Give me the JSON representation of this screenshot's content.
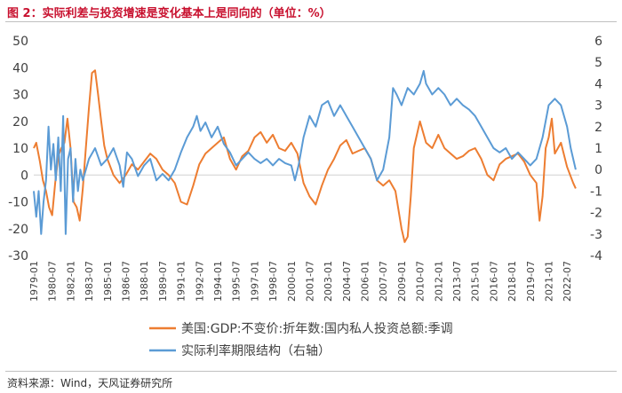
{
  "header": {
    "title": "图 2：实际利差与投资增速是变化基本上是同向的（单位：%）"
  },
  "footer": {
    "source": "资料来源：Wind，天风证券研究所"
  },
  "colors": {
    "series1": "#ed7d31",
    "series2": "#5b9bd5",
    "title": "#c8102e"
  },
  "chart_data": {
    "type": "line",
    "x_ticks": [
      "1979-01",
      "1980-07",
      "1982-01",
      "1983-07",
      "1985-01",
      "1986-07",
      "1988-01",
      "1989-07",
      "1991-01",
      "1992-07",
      "1994-01",
      "1995-07",
      "1997-01",
      "1998-07",
      "2000-01",
      "2001-07",
      "2003-01",
      "2004-07",
      "2006-01",
      "2007-07",
      "2009-01",
      "2010-07",
      "2012-01",
      "2013-07",
      "2015-01",
      "2016-07",
      "2018-01",
      "2019-07",
      "2021-01",
      "2022-07"
    ],
    "x_range": [
      1979.0,
      2023.5
    ],
    "y_left": {
      "range": [
        -30,
        50
      ],
      "ticks": [
        -30,
        -20,
        -10,
        0,
        10,
        20,
        30,
        40,
        50
      ]
    },
    "y_right": {
      "range": [
        -4,
        6
      ],
      "ticks": [
        -4,
        -3,
        -2,
        -1,
        0,
        1,
        2,
        3,
        4,
        5,
        6
      ]
    },
    "series": [
      {
        "name": "美国:GDP:不变价:折年数:国内私人投资总额:季调",
        "axis": "left",
        "points": [
          [
            1979.0,
            10
          ],
          [
            1979.2,
            12
          ],
          [
            1979.5,
            5
          ],
          [
            1979.75,
            -2
          ],
          [
            1980.0,
            -6
          ],
          [
            1980.25,
            -12
          ],
          [
            1980.5,
            -15
          ],
          [
            1980.75,
            -3
          ],
          [
            1981.0,
            7
          ],
          [
            1981.25,
            10
          ],
          [
            1981.5,
            12
          ],
          [
            1981.75,
            21
          ],
          [
            1982.0,
            10
          ],
          [
            1982.25,
            -10
          ],
          [
            1982.5,
            -12
          ],
          [
            1982.75,
            -17
          ],
          [
            1983.0,
            -5
          ],
          [
            1983.25,
            10
          ],
          [
            1983.5,
            25
          ],
          [
            1983.75,
            38
          ],
          [
            1984.0,
            39
          ],
          [
            1984.25,
            30
          ],
          [
            1984.5,
            20
          ],
          [
            1984.75,
            11
          ],
          [
            1985.0,
            6
          ],
          [
            1985.5,
            0
          ],
          [
            1986.0,
            -3
          ],
          [
            1986.5,
            0
          ],
          [
            1987.0,
            4
          ],
          [
            1987.5,
            2
          ],
          [
            1988.0,
            5
          ],
          [
            1988.5,
            8
          ],
          [
            1989.0,
            6
          ],
          [
            1989.5,
            2
          ],
          [
            1990.0,
            0
          ],
          [
            1990.5,
            -3
          ],
          [
            1991.0,
            -10
          ],
          [
            1991.5,
            -11
          ],
          [
            1992.0,
            -4
          ],
          [
            1992.5,
            4
          ],
          [
            1993.0,
            8
          ],
          [
            1993.5,
            10
          ],
          [
            1994.0,
            12
          ],
          [
            1994.5,
            14
          ],
          [
            1995.0,
            6
          ],
          [
            1995.5,
            2
          ],
          [
            1996.0,
            7
          ],
          [
            1996.5,
            9
          ],
          [
            1997.0,
            14
          ],
          [
            1997.5,
            16
          ],
          [
            1998.0,
            12
          ],
          [
            1998.5,
            15
          ],
          [
            1999.0,
            10
          ],
          [
            1999.5,
            9
          ],
          [
            2000.0,
            12
          ],
          [
            2000.5,
            8
          ],
          [
            2001.0,
            -3
          ],
          [
            2001.5,
            -8
          ],
          [
            2002.0,
            -11
          ],
          [
            2002.5,
            -4
          ],
          [
            2003.0,
            2
          ],
          [
            2003.5,
            6
          ],
          [
            2004.0,
            11
          ],
          [
            2004.5,
            13
          ],
          [
            2005.0,
            8
          ],
          [
            2005.5,
            9
          ],
          [
            2006.0,
            10
          ],
          [
            2006.5,
            6
          ],
          [
            2007.0,
            -2
          ],
          [
            2007.5,
            -4
          ],
          [
            2008.0,
            -2
          ],
          [
            2008.5,
            -6
          ],
          [
            2009.0,
            -20
          ],
          [
            2009.25,
            -25
          ],
          [
            2009.5,
            -23
          ],
          [
            2009.75,
            -8
          ],
          [
            2010.0,
            10
          ],
          [
            2010.5,
            20
          ],
          [
            2011.0,
            12
          ],
          [
            2011.5,
            10
          ],
          [
            2012.0,
            15
          ],
          [
            2012.5,
            10
          ],
          [
            2013.0,
            8
          ],
          [
            2013.5,
            6
          ],
          [
            2014.0,
            7
          ],
          [
            2014.5,
            9
          ],
          [
            2015.0,
            10
          ],
          [
            2015.5,
            6
          ],
          [
            2016.0,
            0
          ],
          [
            2016.5,
            -2
          ],
          [
            2017.0,
            4
          ],
          [
            2017.5,
            6
          ],
          [
            2018.0,
            7
          ],
          [
            2018.5,
            8
          ],
          [
            2019.0,
            5
          ],
          [
            2019.5,
            0
          ],
          [
            2020.0,
            -3
          ],
          [
            2020.25,
            -17
          ],
          [
            2020.5,
            -8
          ],
          [
            2020.75,
            10
          ],
          [
            2021.0,
            14
          ],
          [
            2021.25,
            21
          ],
          [
            2021.5,
            8
          ],
          [
            2021.75,
            10
          ],
          [
            2022.0,
            12
          ],
          [
            2022.5,
            3
          ],
          [
            2023.0,
            -3
          ],
          [
            2023.2,
            -5
          ]
        ]
      },
      {
        "name": "实际利率期限结构（右轴）",
        "axis": "right",
        "points": [
          [
            1979.0,
            -1.0
          ],
          [
            1979.2,
            -2.2
          ],
          [
            1979.4,
            -1.0
          ],
          [
            1979.6,
            -3.0
          ],
          [
            1979.8,
            -1.5
          ],
          [
            1980.0,
            -0.5
          ],
          [
            1980.2,
            2.0
          ],
          [
            1980.4,
            0.0
          ],
          [
            1980.6,
            1.2
          ],
          [
            1980.8,
            -0.5
          ],
          [
            1981.0,
            1.5
          ],
          [
            1981.2,
            -1.0
          ],
          [
            1981.4,
            2.5
          ],
          [
            1981.6,
            -3.0
          ],
          [
            1981.8,
            0.5
          ],
          [
            1982.0,
            1.0
          ],
          [
            1982.2,
            -1.5
          ],
          [
            1982.4,
            0.5
          ],
          [
            1982.6,
            -1.0
          ],
          [
            1982.8,
            0.0
          ],
          [
            1983.0,
            -0.5
          ],
          [
            1983.5,
            0.5
          ],
          [
            1984.0,
            1.0
          ],
          [
            1984.5,
            0.2
          ],
          [
            1985.0,
            0.5
          ],
          [
            1985.5,
            1.0
          ],
          [
            1986.0,
            0.2
          ],
          [
            1986.3,
            -0.8
          ],
          [
            1986.6,
            0.8
          ],
          [
            1987.0,
            0.5
          ],
          [
            1987.5,
            -0.3
          ],
          [
            1988.0,
            0.2
          ],
          [
            1988.5,
            0.5
          ],
          [
            1989.0,
            -0.5
          ],
          [
            1989.5,
            -0.2
          ],
          [
            1990.0,
            -0.5
          ],
          [
            1990.5,
            0.0
          ],
          [
            1991.0,
            0.8
          ],
          [
            1991.5,
            1.5
          ],
          [
            1992.0,
            2.0
          ],
          [
            1992.3,
            2.5
          ],
          [
            1992.6,
            1.8
          ],
          [
            1993.0,
            2.2
          ],
          [
            1993.5,
            1.5
          ],
          [
            1994.0,
            2.0
          ],
          [
            1994.5,
            1.2
          ],
          [
            1995.0,
            0.8
          ],
          [
            1995.5,
            0.2
          ],
          [
            1996.0,
            0.5
          ],
          [
            1996.5,
            0.8
          ],
          [
            1997.0,
            0.5
          ],
          [
            1997.5,
            0.3
          ],
          [
            1998.0,
            0.5
          ],
          [
            1998.5,
            0.2
          ],
          [
            1999.0,
            0.5
          ],
          [
            1999.5,
            0.3
          ],
          [
            2000.0,
            0.2
          ],
          [
            2000.3,
            -0.5
          ],
          [
            2000.6,
            0.2
          ],
          [
            2001.0,
            1.5
          ],
          [
            2001.5,
            2.5
          ],
          [
            2002.0,
            2.0
          ],
          [
            2002.5,
            3.0
          ],
          [
            2003.0,
            3.2
          ],
          [
            2003.5,
            2.5
          ],
          [
            2004.0,
            3.0
          ],
          [
            2004.5,
            2.5
          ],
          [
            2005.0,
            2.0
          ],
          [
            2005.5,
            1.5
          ],
          [
            2006.0,
            1.0
          ],
          [
            2006.5,
            0.5
          ],
          [
            2007.0,
            -0.5
          ],
          [
            2007.5,
            0.0
          ],
          [
            2008.0,
            1.5
          ],
          [
            2008.3,
            3.8
          ],
          [
            2008.6,
            3.5
          ],
          [
            2009.0,
            3.0
          ],
          [
            2009.5,
            3.8
          ],
          [
            2010.0,
            3.5
          ],
          [
            2010.5,
            4.0
          ],
          [
            2010.8,
            4.6
          ],
          [
            2011.0,
            4.0
          ],
          [
            2011.5,
            3.5
          ],
          [
            2012.0,
            3.8
          ],
          [
            2012.5,
            3.5
          ],
          [
            2013.0,
            3.0
          ],
          [
            2013.5,
            3.3
          ],
          [
            2014.0,
            3.0
          ],
          [
            2014.5,
            2.8
          ],
          [
            2015.0,
            2.5
          ],
          [
            2015.5,
            2.0
          ],
          [
            2016.0,
            1.5
          ],
          [
            2016.5,
            1.0
          ],
          [
            2017.0,
            0.8
          ],
          [
            2017.5,
            1.0
          ],
          [
            2018.0,
            0.5
          ],
          [
            2018.5,
            0.8
          ],
          [
            2019.0,
            0.5
          ],
          [
            2019.5,
            0.2
          ],
          [
            2020.0,
            0.5
          ],
          [
            2020.5,
            1.5
          ],
          [
            2021.0,
            3.0
          ],
          [
            2021.5,
            3.3
          ],
          [
            2022.0,
            3.0
          ],
          [
            2022.5,
            2.0
          ],
          [
            2022.8,
            1.0
          ],
          [
            2023.0,
            0.5
          ],
          [
            2023.2,
            0.0
          ]
        ]
      }
    ]
  }
}
